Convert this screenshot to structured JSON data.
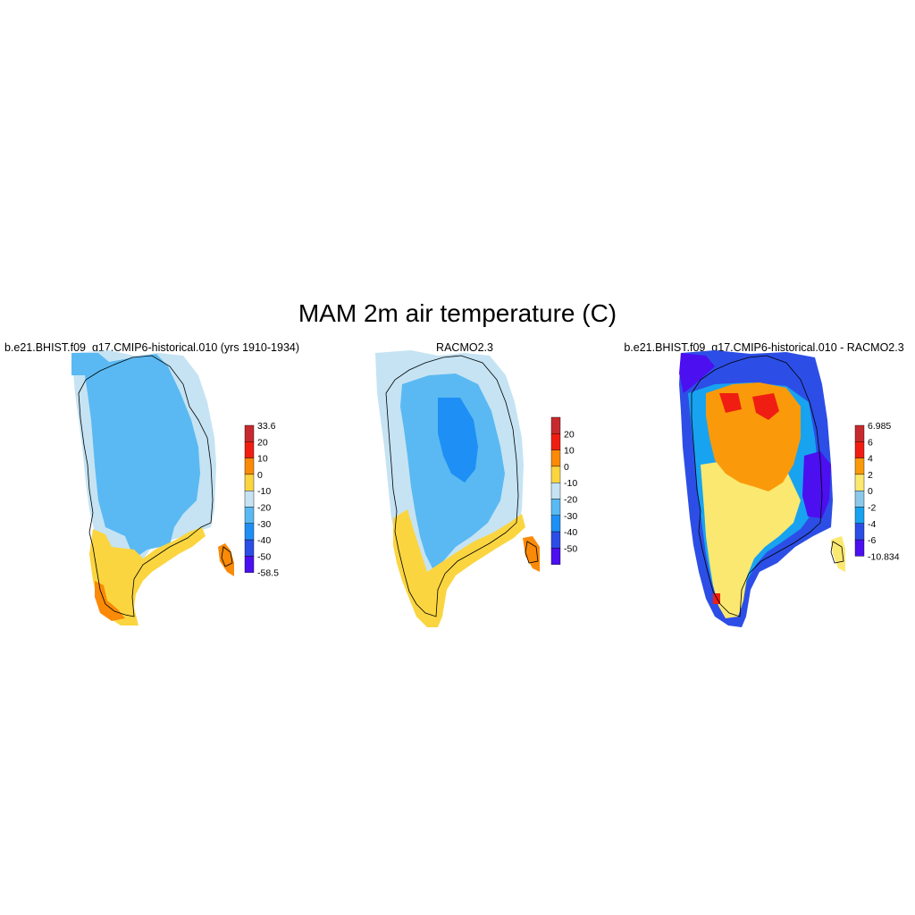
{
  "figure": {
    "title": "MAM 2m air temperature (C)"
  },
  "panels": [
    {
      "title": "b.e21.BHIST.f09_g17.CMIP6-historical.010 (yrs 1910-1934)",
      "colorbar": {
        "colors": [
          "#4b0ff0",
          "#2c4ee6",
          "#1e8ff5",
          "#5ab9f2",
          "#c5e3f3",
          "#fbd540",
          "#fa8a07",
          "#f01e12",
          "#c62a2e"
        ],
        "labels": [
          "-58.5",
          "-50",
          "-40",
          "-30",
          "-20",
          "-10",
          "0",
          "10",
          "20",
          "33.6"
        ]
      }
    },
    {
      "title": "RACMO2.3",
      "colorbar": {
        "colors": [
          "#4b0ff0",
          "#2c4ee6",
          "#1e8ff5",
          "#5ab9f2",
          "#c5e3f3",
          "#fbd540",
          "#fa8a07",
          "#f01e12",
          "#c62a2e"
        ],
        "labels": [
          "",
          "-50",
          "-40",
          "-30",
          "-20",
          "-10",
          "0",
          "10",
          "20",
          ""
        ]
      }
    },
    {
      "title": "b.e21.BHIST.f09_g17.CMIP6-historical.010 - RACMO2.3",
      "colorbar": {
        "colors": [
          "#4b0ff0",
          "#2c4ee6",
          "#18a3f0",
          "#8cc8ea",
          "#fbe870",
          "#fa9a0a",
          "#f01e12",
          "#c62a2e"
        ],
        "labels": [
          "-10.834",
          "-6",
          "-4",
          "-2",
          "0",
          "2",
          "4",
          "6",
          "6.985"
        ]
      }
    }
  ]
}
